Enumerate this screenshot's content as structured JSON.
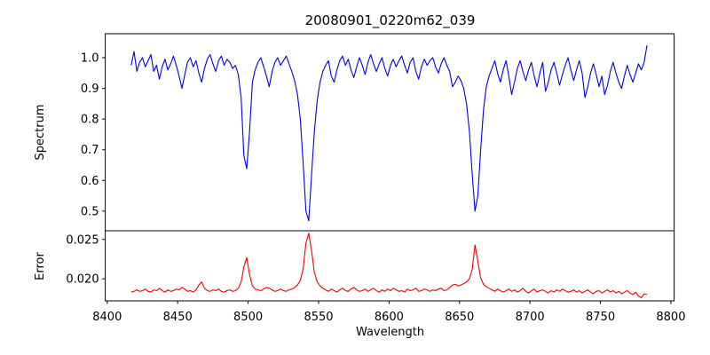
{
  "figure": {
    "title": "20080901_0220m62_039",
    "background": "#ffffff",
    "axis_color": "#000000"
  },
  "chart_data": {
    "type": "line",
    "title": "20080901_0220m62_039",
    "xlabel": "Wavelength",
    "x_start": 8417,
    "x_step": 2,
    "xlim": [
      8398.6,
      8802.3
    ],
    "xticks": [
      8400,
      8450,
      8500,
      8550,
      8600,
      8650,
      8700,
      8750,
      8800
    ],
    "grid": false,
    "legend": "none",
    "panels": [
      {
        "name": "spectrum",
        "ylabel": "Spectrum",
        "color": "#0000ee",
        "ylim": [
          0.436,
          1.078
        ],
        "yticks": [
          0.5,
          0.6,
          0.7,
          0.8,
          0.9,
          1.0
        ],
        "ytick_labels": [
          "0.5",
          "0.6",
          "0.7",
          "0.8",
          "0.9",
          "1.0"
        ],
        "values": [
          0.975,
          1.02,
          0.955,
          0.985,
          1.0,
          0.97,
          0.99,
          1.01,
          0.955,
          0.975,
          0.93,
          0.97,
          0.995,
          0.96,
          0.98,
          1.005,
          0.975,
          0.94,
          0.9,
          0.945,
          0.985,
          1.0,
          0.97,
          0.99,
          0.95,
          0.92,
          0.965,
          0.995,
          1.01,
          0.98,
          0.955,
          0.99,
          1.005,
          0.975,
          0.995,
          0.985,
          0.965,
          0.975,
          0.945,
          0.87,
          0.68,
          0.638,
          0.76,
          0.92,
          0.96,
          0.985,
          1.0,
          0.97,
          0.94,
          0.905,
          0.955,
          0.985,
          1.0,
          0.975,
          0.99,
          1.005,
          0.98,
          0.955,
          0.925,
          0.88,
          0.8,
          0.66,
          0.5,
          0.468,
          0.62,
          0.76,
          0.86,
          0.92,
          0.955,
          0.975,
          0.99,
          0.94,
          0.92,
          0.96,
          0.99,
          1.005,
          0.975,
          0.995,
          0.96,
          0.935,
          0.97,
          1.0,
          0.975,
          0.945,
          0.985,
          1.01,
          0.98,
          0.955,
          0.98,
          1.0,
          0.965,
          0.94,
          0.975,
          0.995,
          0.97,
          0.99,
          1.005,
          0.975,
          0.95,
          0.985,
          1.0,
          0.955,
          0.93,
          0.97,
          0.995,
          0.975,
          0.99,
          1.0,
          0.97,
          0.95,
          0.98,
          1.0,
          0.975,
          0.955,
          0.905,
          0.92,
          0.94,
          0.925,
          0.9,
          0.85,
          0.76,
          0.62,
          0.5,
          0.55,
          0.7,
          0.83,
          0.905,
          0.94,
          0.965,
          0.99,
          0.95,
          0.92,
          0.96,
          0.99,
          0.94,
          0.88,
          0.92,
          0.965,
          0.99,
          0.955,
          0.925,
          0.96,
          0.985,
          0.94,
          0.905,
          0.95,
          0.985,
          0.89,
          0.92,
          0.96,
          0.985,
          0.95,
          0.91,
          0.945,
          0.975,
          1.0,
          0.96,
          0.925,
          0.96,
          0.99,
          0.95,
          0.87,
          0.905,
          0.95,
          0.98,
          0.945,
          0.905,
          0.94,
          0.88,
          0.91,
          0.955,
          0.985,
          0.95,
          0.92,
          0.9,
          0.94,
          0.975,
          0.945,
          0.92,
          0.95,
          0.98,
          0.96,
          0.985,
          1.04
        ]
      },
      {
        "name": "error",
        "ylabel": "Error",
        "color": "#ee0000",
        "ylim": [
          0.0172,
          0.0261
        ],
        "yticks": [
          0.02,
          0.025
        ],
        "ytick_labels": [
          "0.020",
          "0.025"
        ],
        "values": [
          0.0183,
          0.0184,
          0.0186,
          0.0184,
          0.0185,
          0.0187,
          0.0184,
          0.0183,
          0.0186,
          0.0185,
          0.0188,
          0.0185,
          0.0183,
          0.0186,
          0.0184,
          0.0185,
          0.0187,
          0.0186,
          0.0189,
          0.0187,
          0.0184,
          0.0185,
          0.0183,
          0.0186,
          0.0192,
          0.0196,
          0.0188,
          0.0185,
          0.0184,
          0.0186,
          0.0185,
          0.0187,
          0.0184,
          0.0183,
          0.0185,
          0.0186,
          0.0184,
          0.0185,
          0.0188,
          0.0196,
          0.0215,
          0.0227,
          0.0205,
          0.0191,
          0.0187,
          0.0186,
          0.0185,
          0.0187,
          0.0189,
          0.0188,
          0.0186,
          0.0184,
          0.0185,
          0.0187,
          0.0185,
          0.0184,
          0.0186,
          0.0187,
          0.0189,
          0.0192,
          0.0198,
          0.0212,
          0.0245,
          0.0258,
          0.0235,
          0.0208,
          0.0196,
          0.0191,
          0.0188,
          0.0186,
          0.0184,
          0.0187,
          0.0185,
          0.0183,
          0.0186,
          0.0188,
          0.0185,
          0.0184,
          0.0187,
          0.0189,
          0.0186,
          0.0184,
          0.0185,
          0.0187,
          0.0184,
          0.0186,
          0.0188,
          0.0185,
          0.0183,
          0.0186,
          0.0184,
          0.0187,
          0.0185,
          0.0188,
          0.0186,
          0.0184,
          0.0185,
          0.0183,
          0.0187,
          0.0185,
          0.0186,
          0.0188,
          0.0184,
          0.0185,
          0.0187,
          0.0186,
          0.0184,
          0.0186,
          0.0185,
          0.0187,
          0.0188,
          0.0185,
          0.0186,
          0.0189,
          0.0192,
          0.0193,
          0.0191,
          0.0192,
          0.0194,
          0.0196,
          0.02,
          0.0212,
          0.0243,
          0.0222,
          0.0201,
          0.0193,
          0.019,
          0.0188,
          0.0186,
          0.0184,
          0.0187,
          0.0185,
          0.0183,
          0.0185,
          0.0187,
          0.0184,
          0.0186,
          0.0183,
          0.0185,
          0.0188,
          0.0184,
          0.0182,
          0.0185,
          0.0187,
          0.0183,
          0.0185,
          0.0186,
          0.0184,
          0.0182,
          0.0185,
          0.0183,
          0.0186,
          0.0184,
          0.0187,
          0.0185,
          0.0183,
          0.0184,
          0.0186,
          0.0183,
          0.0185,
          0.0182,
          0.0184,
          0.0186,
          0.0183,
          0.0181,
          0.0184,
          0.0185,
          0.0182,
          0.0184,
          0.0186,
          0.0183,
          0.0185,
          0.0182,
          0.0184,
          0.0181,
          0.0183,
          0.0185,
          0.0182,
          0.018,
          0.0183,
          0.0178,
          0.0176,
          0.0181,
          0.018
        ]
      }
    ],
    "features": {
      "absorption_lines": [
        {
          "center": 8498,
          "min_flux": 0.64
        },
        {
          "center": 8542,
          "min_flux": 0.47
        },
        {
          "center": 8662,
          "min_flux": 0.5
        }
      ],
      "error_peaks": [
        {
          "center": 8465,
          "peak": 0.0196
        },
        {
          "center": 8498,
          "peak": 0.0227
        },
        {
          "center": 8542,
          "peak": 0.0258
        },
        {
          "center": 8662,
          "peak": 0.0243
        }
      ],
      "error_baseline": 0.0185,
      "continuum_level": 1.0
    }
  }
}
